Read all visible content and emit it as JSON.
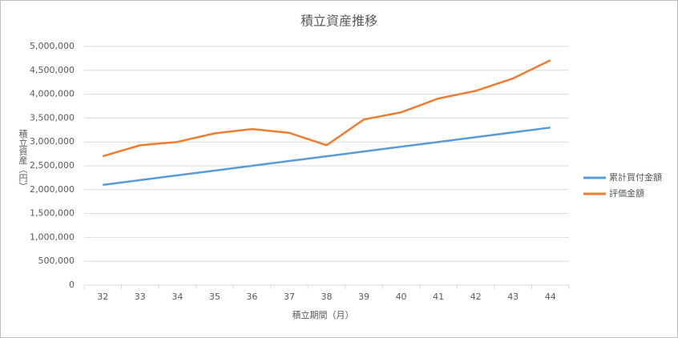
{
  "chart_data": {
    "type": "line",
    "title": "積立資産推移",
    "x_label": "積立期間（月）",
    "y_label": "積立資産（円）",
    "categories": [
      32,
      33,
      34,
      35,
      36,
      37,
      38,
      39,
      40,
      41,
      42,
      43,
      44
    ],
    "series": [
      {
        "name": "累計買付金額",
        "color": "#5b9bd5",
        "values": [
          2100000,
          2200000,
          2300000,
          2400000,
          2500000,
          2600000,
          2700000,
          2800000,
          2900000,
          3000000,
          3100000,
          3200000,
          3300000
        ]
      },
      {
        "name": "評価金額",
        "color": "#ed7d31",
        "values": [
          2700000,
          2930000,
          3000000,
          3180000,
          3270000,
          3190000,
          2930000,
          3470000,
          3620000,
          3910000,
          4070000,
          4330000,
          4710000
        ]
      }
    ],
    "ylim": [
      0,
      5000000
    ],
    "yticks": [
      0,
      {
        "value": 500000,
        "label": "500,000"
      },
      {
        "value": 1000000,
        "label": "1,000,000"
      },
      {
        "value": 1500000,
        "label": "1,500,000"
      },
      {
        "value": 2000000,
        "label": "2,000,000"
      },
      {
        "value": 2500000,
        "label": "2,500,000"
      },
      {
        "value": 3000000,
        "label": "3,000,000"
      },
      {
        "value": 3500000,
        "label": "3,500,000"
      },
      {
        "value": 4000000,
        "label": "4,000,000"
      },
      {
        "value": 4500000,
        "label": "4,500,000"
      },
      {
        "value": 5000000,
        "label": "5,000,000"
      }
    ],
    "grid": true,
    "legend": "right"
  }
}
